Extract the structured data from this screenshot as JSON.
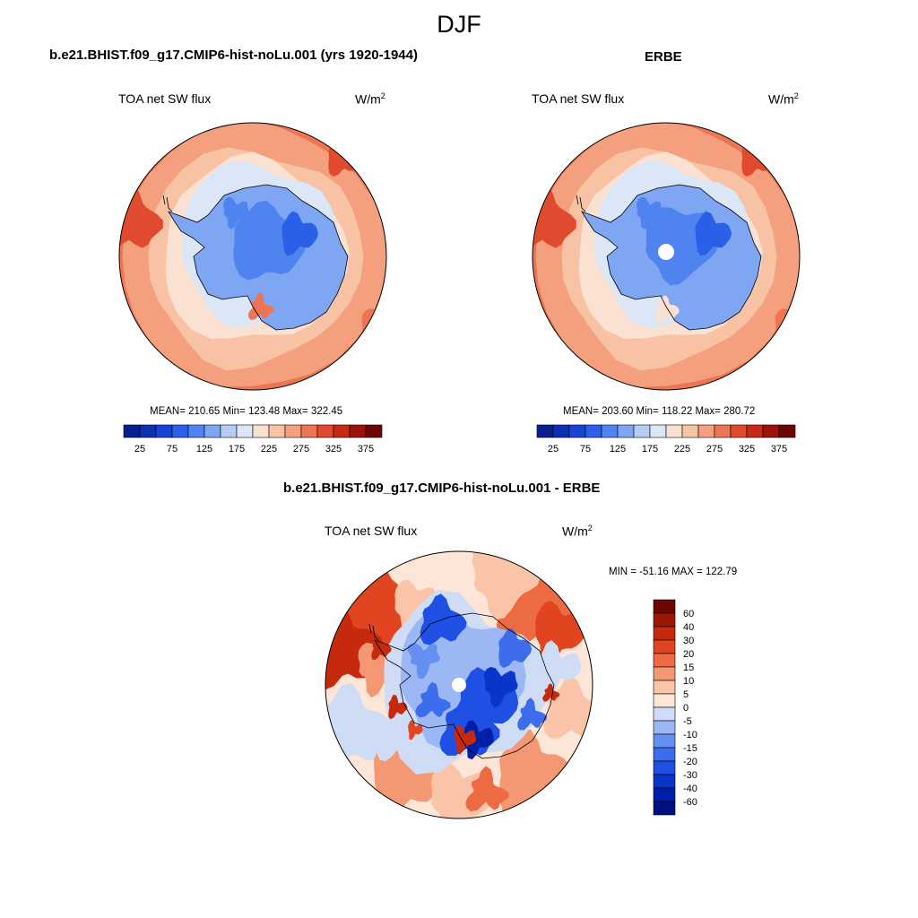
{
  "figure": {
    "title": "DJF"
  },
  "panels": [
    {
      "title": "b.e21.BHIST.f09_g17.CMIP6-hist-noLu.001 (yrs 1920-1944)",
      "left_label": "TOA net SW flux",
      "unit_base": "W/m",
      "unit_exp": "2",
      "stats": "MEAN= 210.65  Min= 123.48  Max= 322.45"
    },
    {
      "title": "ERBE",
      "left_label": "TOA net SW flux",
      "unit_base": "W/m",
      "unit_exp": "2",
      "stats": "MEAN= 203.60  Min= 118.22  Max= 280.72"
    },
    {
      "title": "b.e21.BHIST.f09_g17.CMIP6-hist-noLu.001 - ERBE",
      "left_label": "TOA net SW flux",
      "unit_base": "W/m",
      "unit_exp": "2",
      "stats": "MIN = -51.16 MAX = 122.79"
    }
  ],
  "colors": {
    "abs_scale": [
      "#0a1f8f",
      "#0d2fb3",
      "#1744d6",
      "#2a5fe8",
      "#4f83ef",
      "#7ea6f3",
      "#b6ccf5",
      "#dbe6f7",
      "#fbe1d2",
      "#f8c2a4",
      "#f4a07e",
      "#ee7553",
      "#e04a2e",
      "#c42a16",
      "#9c120a",
      "#6e0505"
    ],
    "diff_scale": [
      "#000f80",
      "#001fa8",
      "#0a35c9",
      "#1f50e3",
      "#3d6ded",
      "#6590f1",
      "#9bb7f4",
      "#cfdcf6",
      "#fde6d7",
      "#f9c4a7",
      "#f49874",
      "#ee6a43",
      "#e04420",
      "#c52a0c",
      "#9e1705",
      "#6e0505"
    ]
  },
  "chart_data": [
    {
      "type": "heatmap",
      "map_projection": "south polar stereographic",
      "title": "b.e21.BHIST.f09_g17.CMIP6-hist-noLu.001 (yrs 1920-1944)",
      "variable": "TOA net SW flux",
      "units": "W/m2",
      "mean": 210.65,
      "min": 123.48,
      "max": 322.45,
      "colorbar": {
        "orientation": "horizontal",
        "levels": [
          25,
          50,
          75,
          100,
          125,
          150,
          175,
          200,
          225,
          250,
          275,
          300,
          325,
          350,
          375
        ],
        "tick_labels": [
          "25",
          "75",
          "125",
          "175",
          "225",
          "275",
          "325",
          "375"
        ]
      }
    },
    {
      "type": "heatmap",
      "map_projection": "south polar stereographic",
      "title": "ERBE",
      "variable": "TOA net SW flux",
      "units": "W/m2",
      "mean": 203.6,
      "min": 118.22,
      "max": 280.72,
      "colorbar": {
        "orientation": "horizontal",
        "levels": [
          25,
          50,
          75,
          100,
          125,
          150,
          175,
          200,
          225,
          250,
          275,
          300,
          325,
          350,
          375
        ],
        "tick_labels": [
          "25",
          "75",
          "125",
          "175",
          "225",
          "275",
          "325",
          "375"
        ]
      }
    },
    {
      "type": "heatmap",
      "map_projection": "south polar stereographic",
      "title": "b.e21.BHIST.f09_g17.CMIP6-hist-noLu.001 - ERBE",
      "variable": "TOA net SW flux",
      "units": "W/m2",
      "min": -51.16,
      "max": 122.79,
      "colorbar": {
        "orientation": "vertical",
        "tick_labels": [
          "60",
          "40",
          "30",
          "20",
          "15",
          "10",
          "5",
          "0",
          "-5",
          "-10",
          "-15",
          "-20",
          "-30",
          "-40",
          "-60"
        ]
      }
    }
  ]
}
